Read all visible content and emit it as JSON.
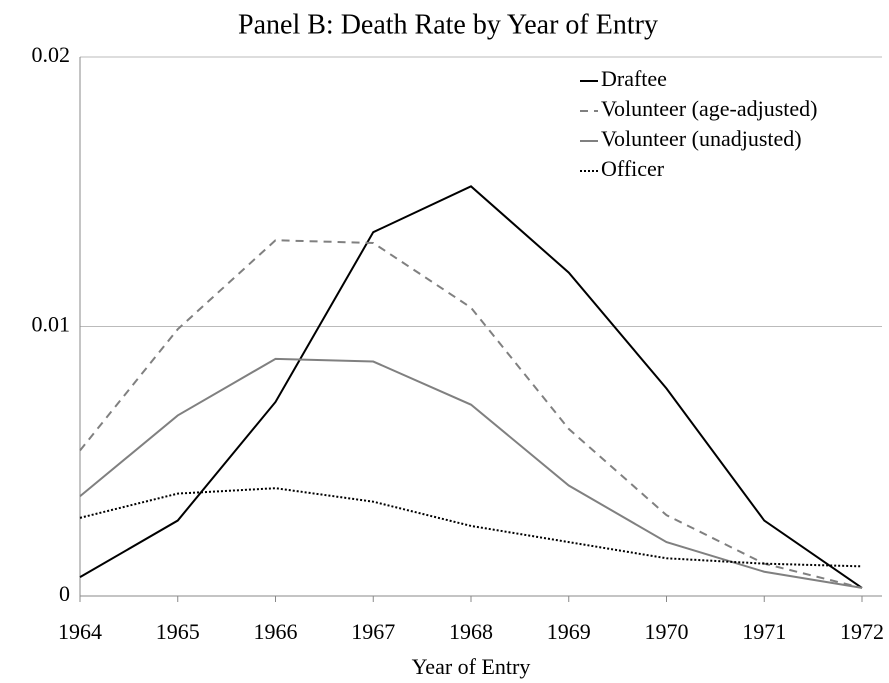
{
  "chart_data": {
    "type": "line",
    "title": "Panel B: Death Rate by Year of Entry",
    "xlabel": "Year of Entry",
    "x": [
      1964,
      1965,
      1966,
      1967,
      1968,
      1969,
      1970,
      1971,
      1972
    ],
    "xlim": [
      1964,
      1972
    ],
    "xticks": [
      1964,
      1965,
      1966,
      1967,
      1968,
      1969,
      1970,
      1971,
      1972
    ],
    "ylim": [
      0,
      0.02
    ],
    "yticks": [
      0,
      0.01,
      0.02
    ],
    "grid": true,
    "legend": "upper right",
    "series": [
      {
        "name": "Draftee",
        "color": "#000000",
        "dash": "solid",
        "values": [
          0.0007,
          0.0028,
          0.0072,
          0.0135,
          0.0152,
          0.012,
          0.0077,
          0.0028,
          0.0003
        ]
      },
      {
        "name": "Volunteer (age-adjusted)",
        "color": "#808080",
        "dash": "dashed",
        "values": [
          0.0054,
          0.0099,
          0.0132,
          0.0131,
          0.0107,
          0.0062,
          0.003,
          0.0012,
          0.0003
        ]
      },
      {
        "name": "Volunteer (unadjusted)",
        "color": "#808080",
        "dash": "solid",
        "values": [
          0.0037,
          0.0067,
          0.0088,
          0.0087,
          0.0071,
          0.0041,
          0.002,
          0.0009,
          0.0003
        ]
      },
      {
        "name": "Officer",
        "color": "#000000",
        "dash": "dotted",
        "values": [
          0.0029,
          0.0038,
          0.004,
          0.0035,
          0.0026,
          0.002,
          0.0014,
          0.0012,
          0.0011
        ]
      }
    ]
  }
}
